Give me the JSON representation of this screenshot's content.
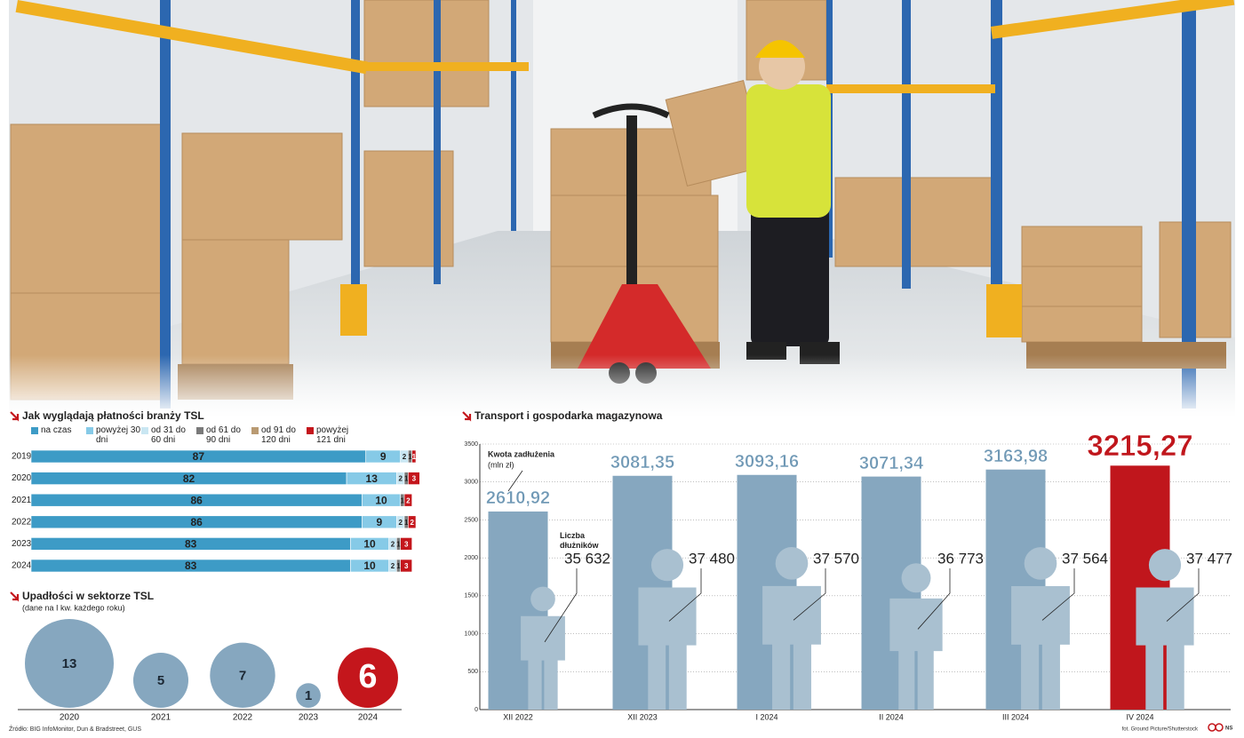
{
  "source": "Źródło: BIG InfoMonitor, Dun & Bradstreet, GUS",
  "photo_credit": "fot. Ground Picture/Shutterstock",
  "logo": "NS",
  "chart_data": [
    {
      "type": "stacked_bar",
      "title": "Jak wyglądają płatności branży TSL",
      "categories": [
        "2019",
        "2020",
        "2021",
        "2022",
        "2023",
        "2024"
      ],
      "xlim": [
        0,
        100
      ],
      "series": [
        {
          "name": "na czas",
          "color": "#3d9bc6",
          "values": [
            87,
            82,
            86,
            86,
            83,
            83
          ]
        },
        {
          "name": "powyżej 30 dni",
          "color": "#86cae7",
          "values": [
            9,
            13,
            10,
            9,
            10,
            10
          ]
        },
        {
          "name": "od 31 do 60 dni",
          "color": "#c9e6f2",
          "values": [
            2,
            2,
            null,
            2,
            2,
            2
          ]
        },
        {
          "name": "od 61 do 90 dni",
          "color": "#7a7a7a",
          "values": [
            1,
            1,
            1,
            1,
            1,
            1
          ]
        },
        {
          "name": "od 91 do 120 dni",
          "color": "#b99a72",
          "values": [
            null,
            null,
            null,
            null,
            null,
            null
          ]
        },
        {
          "name": "powyżej 121 dni",
          "color": "#c4161c",
          "values": [
            1,
            3,
            2,
            2,
            3,
            3
          ]
        }
      ]
    },
    {
      "type": "bubble",
      "title": "Upadłości w sektorze TSL",
      "subtitle": "(dane na I kw. każdego roku)",
      "categories": [
        "2020",
        "2021",
        "2022",
        "2023",
        "2024"
      ],
      "values": [
        13,
        5,
        7,
        1,
        6
      ],
      "colors": [
        "#86a7bf",
        "#86a7bf",
        "#86a7bf",
        "#86a7bf",
        "#c4161c"
      ]
    },
    {
      "type": "bar",
      "title": "Transport i gospodarka magazynowa",
      "categories": [
        "XII 2022",
        "XII 2023",
        "I 2024",
        "II 2024",
        "III 2024",
        "IV 2024"
      ],
      "ylim": [
        0,
        3500
      ],
      "yticks": [
        0,
        500,
        1000,
        1500,
        2000,
        2500,
        3000,
        3500
      ],
      "grid": true,
      "series": [
        {
          "name": "Kwota zadłużenia",
          "unit": "(mln zł)",
          "colors": [
            "#86a7bf",
            "#86a7bf",
            "#86a7bf",
            "#86a7bf",
            "#86a7bf",
            "#c0161c"
          ],
          "label_colors": [
            "#6f98b5",
            "#6f98b5",
            "#6f98b5",
            "#6f98b5",
            "#6f98b5",
            "#c0161c"
          ],
          "values": [
            2610.92,
            3081.35,
            3093.16,
            3071.34,
            3163.98,
            3215.27
          ],
          "value_labels": [
            "2610,92",
            "3081,35",
            "3093,16",
            "3071,34",
            "3163,98",
            "3215,27"
          ]
        },
        {
          "name": "Liczba dłużników",
          "color": "#a9c0d0",
          "values": [
            35632,
            37480,
            37570,
            36773,
            37564,
            37477
          ],
          "value_labels": [
            "35 632",
            "37 480",
            "37 570",
            "36 773",
            "37 564",
            "37 477"
          ]
        }
      ]
    }
  ]
}
